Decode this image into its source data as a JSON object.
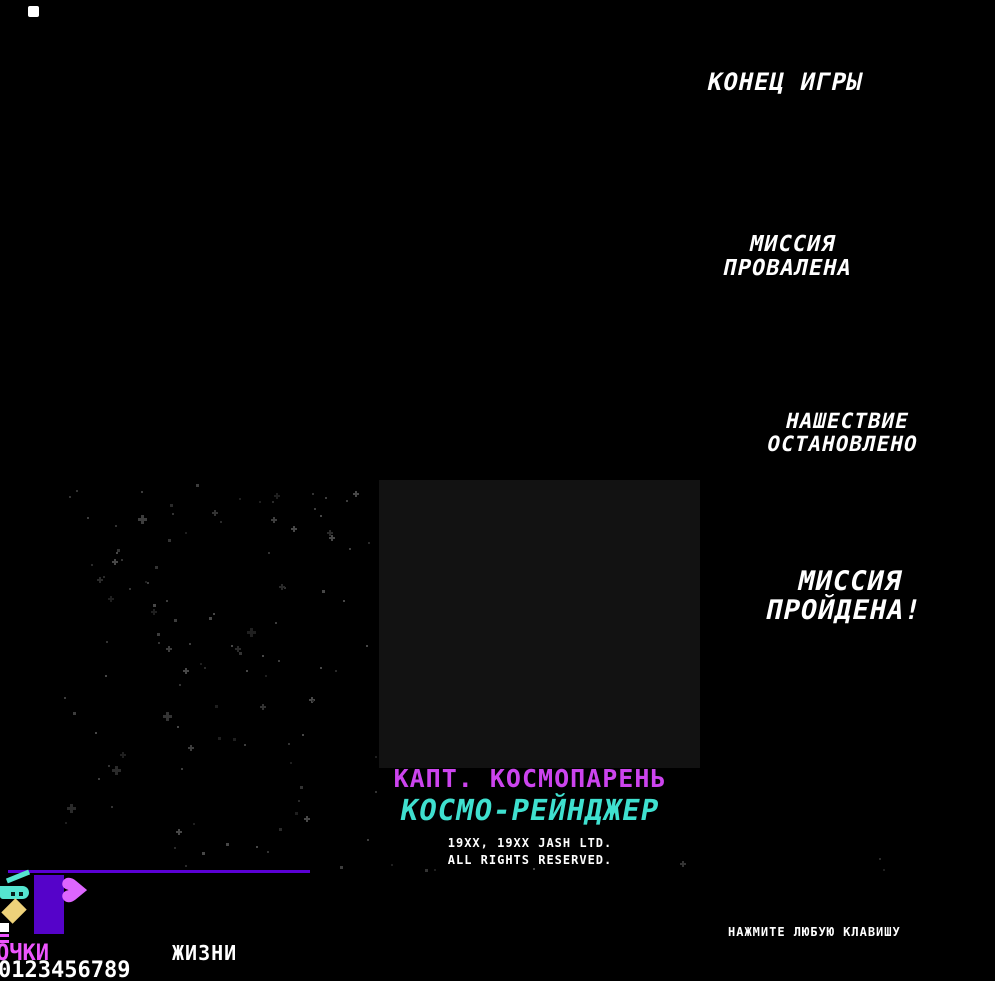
{
  "messages": {
    "game_over": "КОНЕЦ ИГРЫ",
    "mission_failed": "МИССИЯ\nПРОВАЛЕНА",
    "invasion_stopped": "НАШЕСТВИЕ\nОСТАНОВЛЕНО",
    "mission_passed": "МИССИЯ\nПРОЙДЕНА!"
  },
  "title_screen": {
    "captain_name": "КАПТ. КОСМОПАРЕНЬ",
    "game_title": "КОСМО-РЕЙНДЖЕР",
    "copyright_line1": "19XX, 19XX JASH LTD.",
    "copyright_line2": "ALL RIGHTS RESERVED.",
    "press_any_key": "НАЖМИТЕ ЛЮБУЮ КЛАВИШУ"
  },
  "hud": {
    "score_label": "ОЧКИ",
    "score_digits": "0123456789",
    "lives_label": "ЖИЗНИ",
    "heart_glyph": "♥"
  },
  "palette": {
    "background": "#000000",
    "message_white": "#ffffff",
    "captain_magenta": "#cc44ee",
    "title_cyan": "#3fe0cf",
    "hud_purple": "#5503c9",
    "heart_pink": "#dd66ff",
    "diamond_yellow": "#eed27a",
    "ship_teal": "#55e5d0",
    "score_magenta": "#ee55ff",
    "panel_gray": "#121212"
  },
  "starfield": {
    "seed": 1337,
    "count_main": 115,
    "count_strip": 7
  }
}
